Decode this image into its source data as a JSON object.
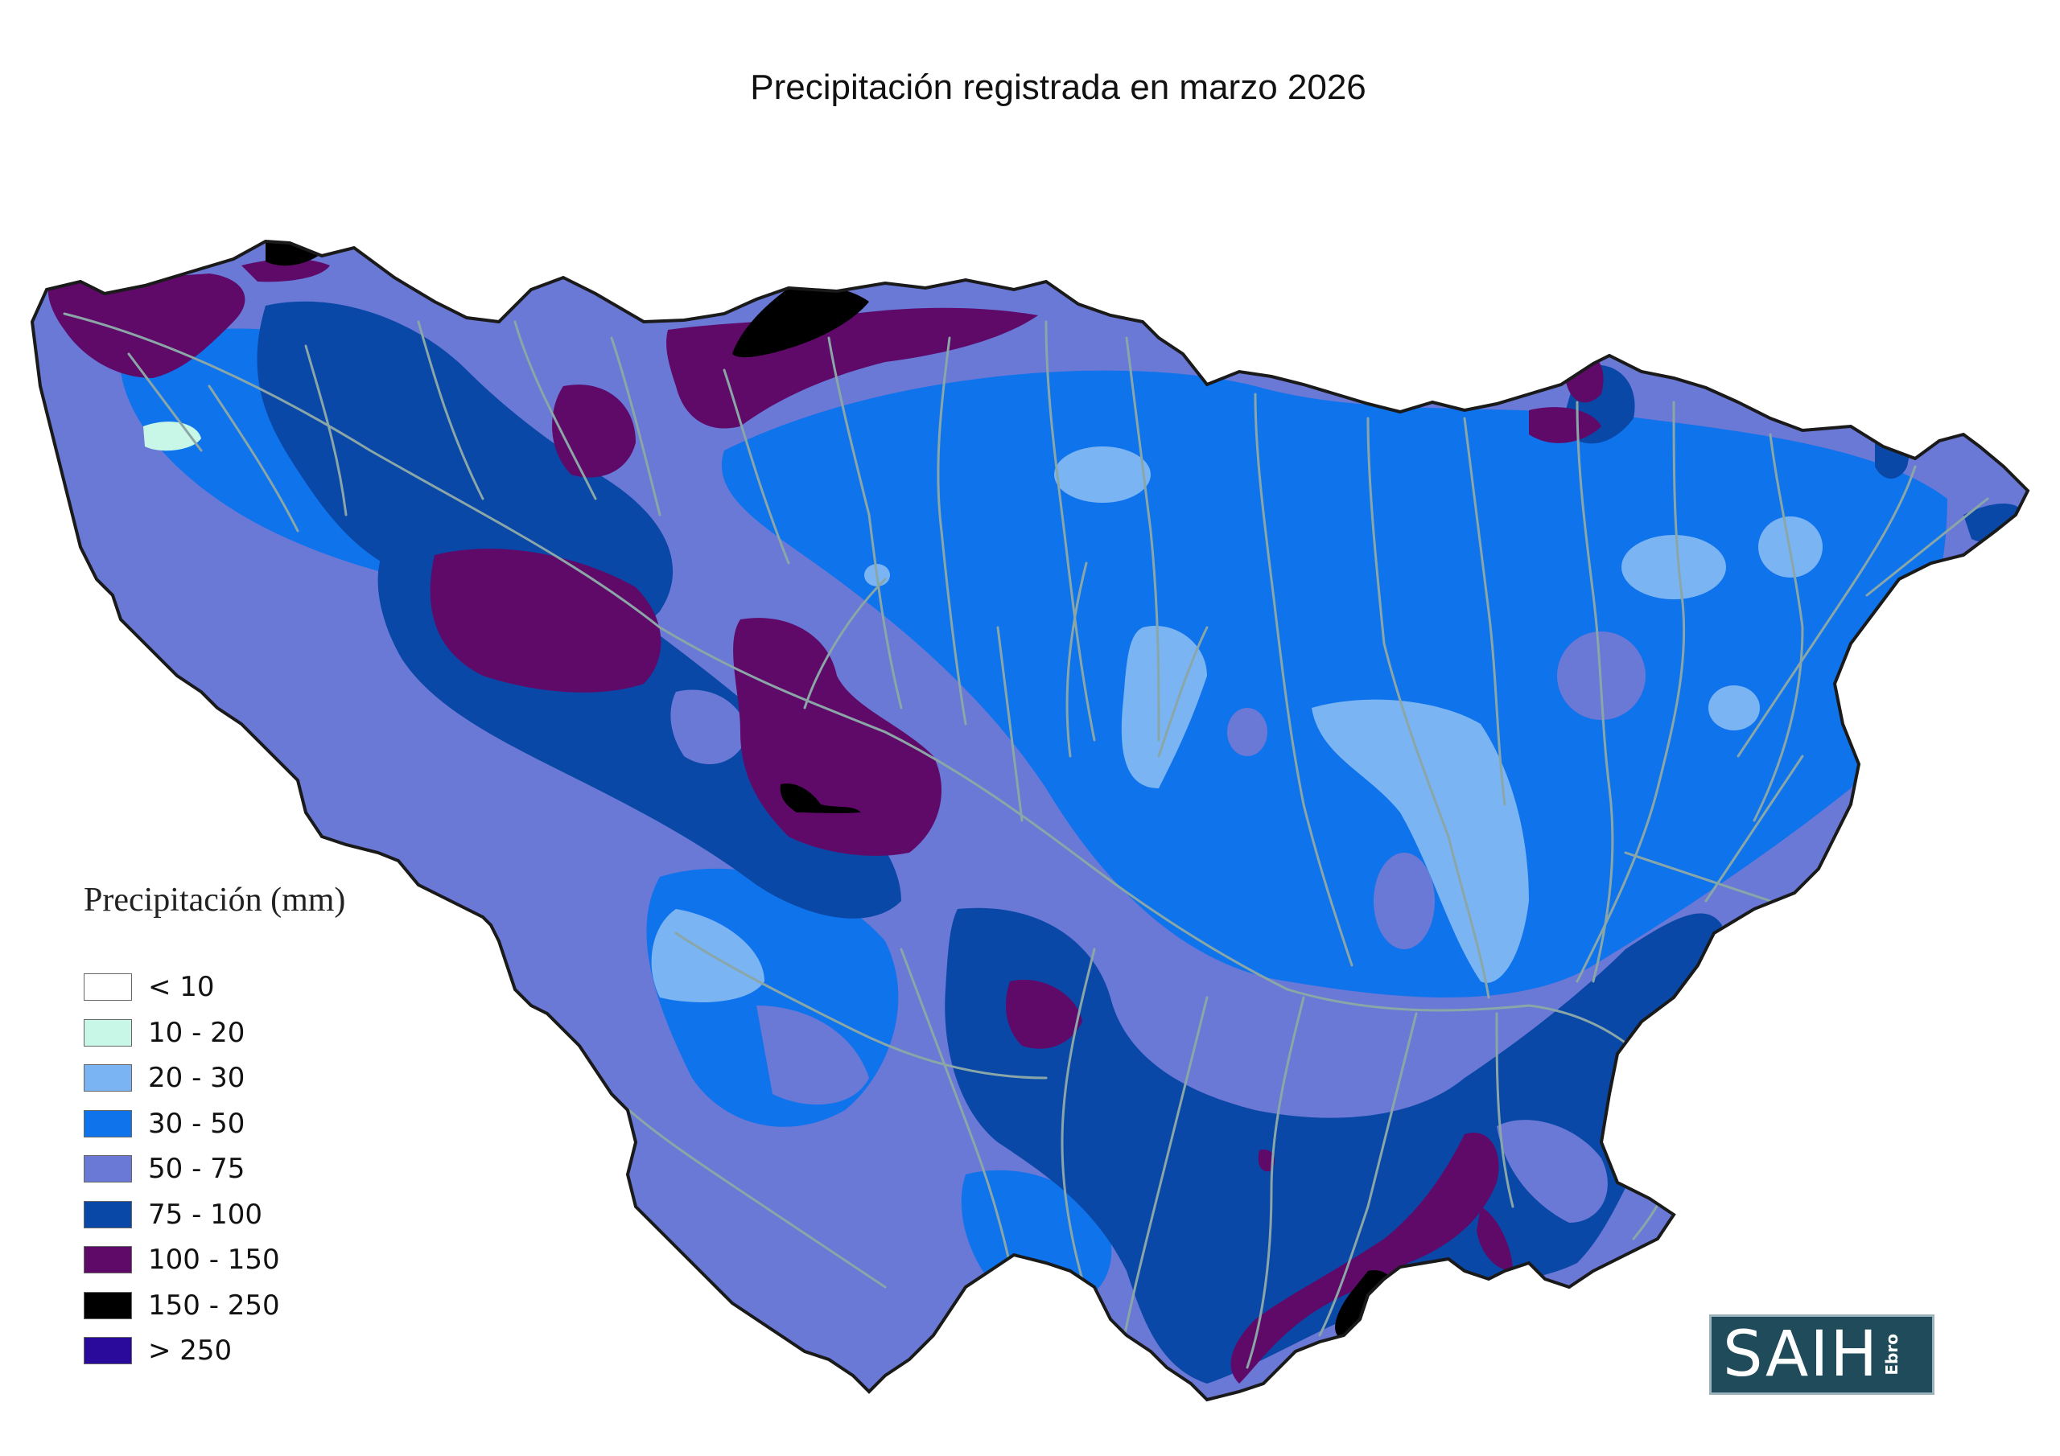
{
  "title": "Precipitación registrada en marzo 2026",
  "legend": {
    "title": "Precipitación (mm)",
    "items": [
      {
        "label": "< 10",
        "color": "#ffffff"
      },
      {
        "label": "10 - 20",
        "color": "#c8f7e8"
      },
      {
        "label": "20 - 30",
        "color": "#7ab4f2"
      },
      {
        "label": "30 - 50",
        "color": "#0f73ec"
      },
      {
        "label": "50 - 75",
        "color": "#6a78d6"
      },
      {
        "label": "75 - 100",
        "color": "#0a48a8"
      },
      {
        "label": "100 - 150",
        "color": "#5f0a68"
      },
      {
        "label": "150 - 250",
        "color": "#000000"
      },
      {
        "label": "> 250",
        "color": "#2a0a9a"
      }
    ]
  },
  "logo": {
    "main": "SAIH",
    "sub": "Ebro"
  },
  "colors": {
    "river": "#8aa6a6",
    "border": "#1a1a1a"
  }
}
